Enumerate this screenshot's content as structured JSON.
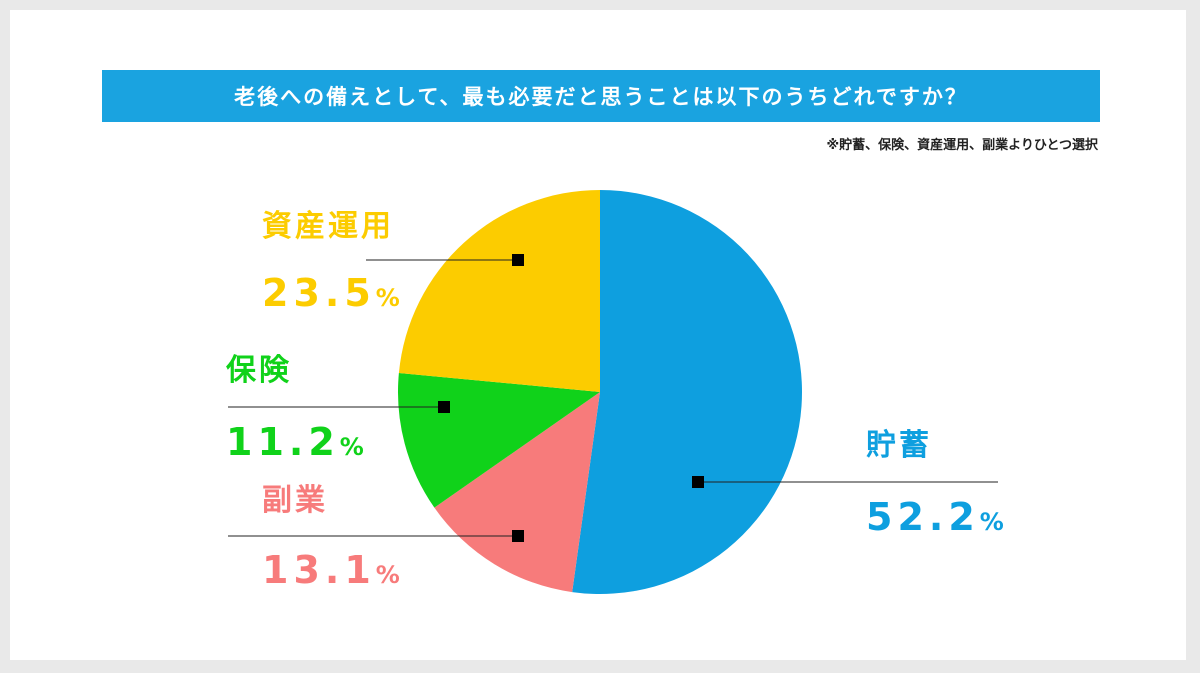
{
  "title": "老後への備えとして、最も必要だと思うことは以下のうちどれですか？",
  "note": "※貯蓄、保険、資産運用、副業よりひとつ選択",
  "colors": {
    "title_bar": "#1aa3e0",
    "貯蓄": "#0e9fdf",
    "副業": "#f77b7b",
    "保険": "#10d21a",
    "資産運用": "#fccc00",
    "marker": "#000000"
  },
  "chart_data": {
    "type": "pie",
    "start": "12 o'clock",
    "direction": "clockwise",
    "unit": "%",
    "slices": [
      {
        "label": "貯蓄",
        "value": 52.2,
        "color": "#0e9fdf"
      },
      {
        "label": "副業",
        "value": 13.1,
        "color": "#f77b7b"
      },
      {
        "label": "保険",
        "value": 11.2,
        "color": "#10d21a"
      },
      {
        "label": "資産運用",
        "value": 23.5,
        "color": "#fccc00"
      }
    ]
  }
}
